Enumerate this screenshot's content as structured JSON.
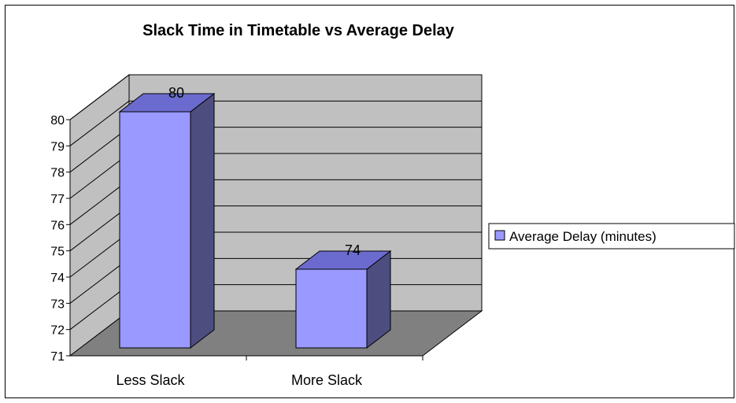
{
  "chart_data": {
    "type": "bar",
    "title": "Slack Time in Timetable vs Average Delay",
    "xlabel": "",
    "ylabel": "",
    "categories": [
      "Less Slack",
      "More Slack"
    ],
    "series": [
      {
        "name": "Average Delay (minutes)",
        "values": [
          80,
          74
        ]
      }
    ],
    "data_labels": [
      "80",
      "74"
    ],
    "ylim": [
      71,
      80
    ],
    "y_ticks": [
      71,
      72,
      73,
      74,
      75,
      76,
      77,
      78,
      79,
      80
    ],
    "grid": true,
    "style": "3d-column",
    "legend": "right",
    "colors": {
      "bar_front": "#9999ff",
      "bar_top": "#6b6bcf",
      "bar_side": "#4d4d80",
      "back_wall": "#c0c0c0",
      "side_wall": "#c0c0c0",
      "floor": "#808080"
    }
  }
}
